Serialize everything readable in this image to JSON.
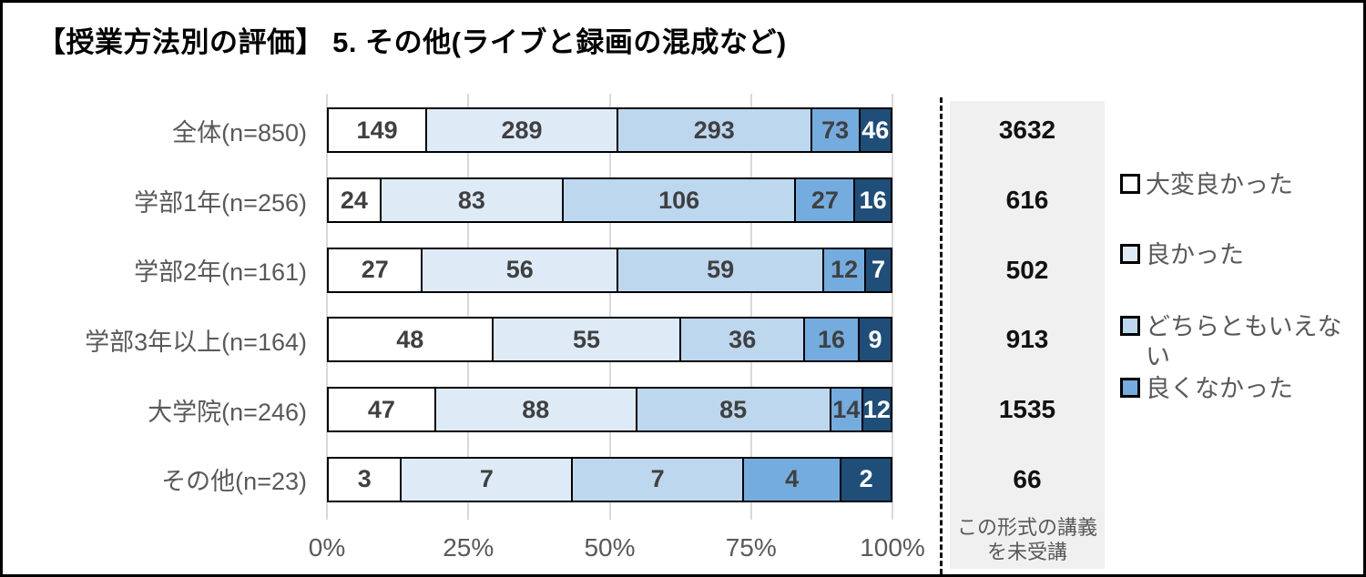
{
  "title": "【授業方法別の評価】 5. その他(ライブと録画の混成など)",
  "chart_data": {
    "type": "bar",
    "orientation": "horizontal",
    "stacked": true,
    "title": "【授業方法別の評価】 5. その他(ライブと録画の混成など)",
    "categories": [
      "全体(n=850)",
      "学部1年(n=256)",
      "学部2年(n=161)",
      "学部3年以上(n=164)",
      "大学院(n=246)",
      "その他(n=23)"
    ],
    "series": [
      {
        "name": "大変良かった",
        "color": "#FFFFFF",
        "text_color": "#404040",
        "values": [
          149,
          24,
          27,
          48,
          47,
          3
        ]
      },
      {
        "name": "良かった",
        "color": "#DEEBF7",
        "text_color": "#404040",
        "values": [
          289,
          83,
          56,
          55,
          88,
          7
        ]
      },
      {
        "name": "どちらともいえない",
        "color": "#BDD7EE",
        "text_color": "#404040",
        "values": [
          293,
          106,
          59,
          36,
          85,
          7
        ]
      },
      {
        "name": "良くなかった",
        "color": "#74ACDF",
        "text_color": "#404040",
        "values": [
          73,
          27,
          12,
          16,
          14,
          4
        ]
      },
      {
        "name": "",
        "color": "#1F4E79",
        "text_color": "#FFFFFF",
        "values": [
          46,
          16,
          7,
          9,
          12,
          2
        ]
      }
    ],
    "x_ticks": [
      "0%",
      "25%",
      "50%",
      "75%",
      "100%"
    ],
    "xlim": [
      0,
      100
    ],
    "grid": true,
    "legend_position": "right",
    "legend": [
      {
        "label": "大変良かった",
        "color": "#FFFFFF"
      },
      {
        "label": "良かった",
        "color": "#DEEBF7"
      },
      {
        "label": "どちらともいえない",
        "color": "#BDD7EE"
      },
      {
        "label": "良くなかった",
        "color": "#74ACDF"
      }
    ],
    "right_panel": {
      "note": "この形式の講義を未受講",
      "values": [
        3632,
        616,
        502,
        913,
        1535,
        66
      ]
    }
  },
  "colors": {
    "grid": "#d9d9d9",
    "bar_border": "#000000",
    "label_text": "#595959",
    "panel_bg": "#f0f0f0",
    "dark_segment": "#1F4E79"
  }
}
